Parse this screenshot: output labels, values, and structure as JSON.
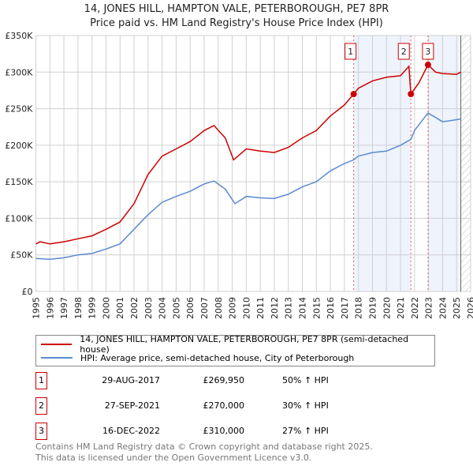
{
  "chart_data": {
    "type": "line",
    "title": "14, JONES HILL, HAMPTON VALE, PETERBOROUGH, PE7 8PR",
    "subtitle": "Price paid vs. HM Land Registry's House Price Index (HPI)",
    "xlim": [
      1995,
      2026
    ],
    "ylim": [
      0,
      350000
    ],
    "y_ticks": [
      0,
      50000,
      100000,
      150000,
      200000,
      250000,
      300000,
      350000
    ],
    "y_tick_labels": [
      "£0",
      "£50K",
      "£100K",
      "£150K",
      "£200K",
      "£250K",
      "£300K",
      "£350K"
    ],
    "x_ticks": [
      "1995",
      "1996",
      "1997",
      "1998",
      "1999",
      "2000",
      "2001",
      "2002",
      "2003",
      "2004",
      "2005",
      "2006",
      "2007",
      "2008",
      "2009",
      "2010",
      "2011",
      "2012",
      "2013",
      "2014",
      "2015",
      "2016",
      "2017",
      "2018",
      "2019",
      "2020",
      "2021",
      "2022",
      "2023",
      "2024",
      "2025",
      "2026"
    ],
    "grid": true,
    "shaded_ranges": [
      [
        2017.66,
        2021.74
      ],
      [
        2022.96,
        2025.3
      ]
    ],
    "hatched_from": 2025.3,
    "series": [
      {
        "name": "14, JONES HILL, HAMPTON VALE, PETERBOROUGH, PE7 8PR (semi-detached house)",
        "color": "#cc0000",
        "x": [
          1995,
          1995.3,
          1996,
          1997,
          1998,
          1999,
          2000,
          2001,
          2002,
          2002.5,
          2003,
          2004,
          2005,
          2006,
          2007,
          2007.7,
          2008.5,
          2009.1,
          2010,
          2011,
          2012,
          2013,
          2014,
          2015,
          2016,
          2017,
          2017.66,
          2018,
          2019,
          2020,
          2021,
          2021.6,
          2021.74,
          2022.3,
          2022.96,
          2023.5,
          2024,
          2025,
          2025.3
        ],
        "y": [
          65000,
          68000,
          65000,
          68000,
          72000,
          76000,
          85000,
          95000,
          120000,
          140000,
          160000,
          185000,
          195000,
          205000,
          220000,
          227000,
          210000,
          180000,
          195000,
          192000,
          190000,
          197000,
          210000,
          220000,
          240000,
          255000,
          269950,
          278000,
          288000,
          293000,
          295000,
          308000,
          270000,
          285000,
          310000,
          300000,
          298000,
          297000,
          300000
        ]
      },
      {
        "name": "HPI: Average price, semi-detached house, City of Peterborough",
        "color": "#5b8bd0",
        "x": [
          1995,
          1996,
          1997,
          1998,
          1999,
          2000,
          2001,
          2002,
          2003,
          2004,
          2005,
          2006,
          2007,
          2007.7,
          2008.5,
          2009.2,
          2010,
          2011,
          2012,
          2013,
          2014,
          2015,
          2016,
          2017,
          2017.66,
          2018,
          2019,
          2020,
          2021,
          2021.74,
          2022,
          2022.96,
          2023.5,
          2024,
          2025,
          2025.3
        ],
        "y": [
          45000,
          44000,
          46000,
          50000,
          52000,
          58000,
          65000,
          85000,
          105000,
          122000,
          130000,
          137000,
          147000,
          151000,
          140000,
          120000,
          130000,
          128000,
          127000,
          133000,
          143000,
          150000,
          165000,
          175000,
          180000,
          185000,
          190000,
          192000,
          200000,
          208000,
          220000,
          244000,
          238000,
          232000,
          235000,
          236000
        ]
      }
    ],
    "sales": [
      {
        "label": "1",
        "x": 2017.66,
        "y": 269950
      },
      {
        "label": "2",
        "x": 2021.74,
        "y": 270000
      },
      {
        "label": "3",
        "x": 2022.96,
        "y": 310000
      }
    ]
  },
  "table": [
    {
      "num": "1",
      "date": "29-AUG-2017",
      "price": "£269,950",
      "hpi": "50% ↑ HPI"
    },
    {
      "num": "2",
      "date": "27-SEP-2021",
      "price": "£270,000",
      "hpi": "30% ↑ HPI"
    },
    {
      "num": "3",
      "date": "16-DEC-2022",
      "price": "£310,000",
      "hpi": "27% ↑ HPI"
    }
  ],
  "footer": [
    "Contains HM Land Registry data © Crown copyright and database right 2025.",
    "This data is licensed under the Open Government Licence v3.0."
  ]
}
